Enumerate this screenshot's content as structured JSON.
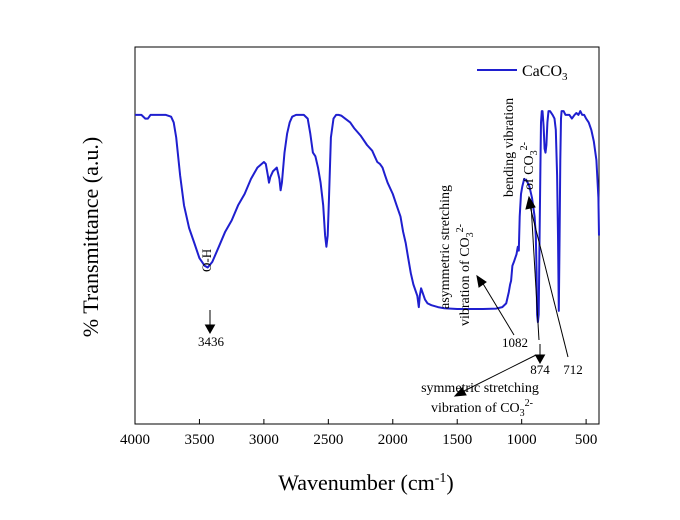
{
  "chart_data": {
    "type": "line",
    "title": "",
    "xlabel_main": "Wavenumber (cm",
    "xlabel_sup": "-1",
    "xlabel_end": ")",
    "ylabel": "% Transmittance (a.u.)",
    "xlim": [
      4000,
      400
    ],
    "ylim": [
      0,
      100
    ],
    "x_reversed": true,
    "x_ticks": [
      4000,
      3500,
      3000,
      2500,
      2000,
      1500,
      1000,
      500
    ],
    "y_ticks_shown": false,
    "legend": {
      "position": "top-right",
      "label_base": "CaCO",
      "label_sub": "3"
    },
    "line_color": "#1f1fcf",
    "series": [
      {
        "name": "CaCO3",
        "points": [
          [
            4000,
            82
          ],
          [
            3950,
            82
          ],
          [
            3920,
            81
          ],
          [
            3900,
            81
          ],
          [
            3880,
            82
          ],
          [
            3850,
            82
          ],
          [
            3800,
            82
          ],
          [
            3760,
            82
          ],
          [
            3720,
            81.5
          ],
          [
            3700,
            80
          ],
          [
            3680,
            76
          ],
          [
            3650,
            66
          ],
          [
            3620,
            58
          ],
          [
            3580,
            52
          ],
          [
            3540,
            48
          ],
          [
            3500,
            44
          ],
          [
            3460,
            42
          ],
          [
            3436,
            41.5
          ],
          [
            3400,
            43
          ],
          [
            3350,
            47
          ],
          [
            3300,
            51
          ],
          [
            3250,
            54
          ],
          [
            3200,
            58
          ],
          [
            3150,
            61
          ],
          [
            3100,
            65
          ],
          [
            3050,
            68
          ],
          [
            3000,
            69.5
          ],
          [
            2985,
            69
          ],
          [
            2970,
            66
          ],
          [
            2960,
            64
          ],
          [
            2950,
            65.5
          ],
          [
            2930,
            67
          ],
          [
            2900,
            68
          ],
          [
            2880,
            65
          ],
          [
            2870,
            62
          ],
          [
            2860,
            64
          ],
          [
            2840,
            72
          ],
          [
            2820,
            77
          ],
          [
            2800,
            80
          ],
          [
            2780,
            81.5
          ],
          [
            2750,
            82
          ],
          [
            2720,
            82
          ],
          [
            2690,
            82
          ],
          [
            2660,
            81
          ],
          [
            2640,
            77
          ],
          [
            2620,
            72
          ],
          [
            2600,
            71
          ],
          [
            2580,
            68
          ],
          [
            2560,
            64
          ],
          [
            2540,
            58
          ],
          [
            2525,
            50
          ],
          [
            2515,
            47
          ],
          [
            2505,
            50
          ],
          [
            2495,
            60
          ],
          [
            2480,
            76
          ],
          [
            2460,
            81
          ],
          [
            2440,
            82
          ],
          [
            2420,
            82
          ],
          [
            2400,
            81.8
          ],
          [
            2370,
            81
          ],
          [
            2330,
            80
          ],
          [
            2300,
            78.5
          ],
          [
            2250,
            76.5
          ],
          [
            2200,
            74
          ],
          [
            2160,
            72.5
          ],
          [
            2140,
            71
          ],
          [
            2120,
            69.5
          ],
          [
            2100,
            69
          ],
          [
            2080,
            68
          ],
          [
            2060,
            66
          ],
          [
            2040,
            64
          ],
          [
            2000,
            61
          ],
          [
            1970,
            58
          ],
          [
            1940,
            55
          ],
          [
            1920,
            51
          ],
          [
            1900,
            48
          ],
          [
            1880,
            44
          ],
          [
            1860,
            40
          ],
          [
            1840,
            37
          ],
          [
            1810,
            34
          ],
          [
            1798,
            31
          ],
          [
            1790,
            34
          ],
          [
            1780,
            36
          ],
          [
            1770,
            35
          ],
          [
            1750,
            33
          ],
          [
            1730,
            32
          ],
          [
            1700,
            31.5
          ],
          [
            1650,
            31
          ],
          [
            1600,
            30.7
          ],
          [
            1500,
            30.5
          ],
          [
            1400,
            30.5
          ],
          [
            1300,
            30.5
          ],
          [
            1200,
            30.6
          ],
          [
            1150,
            31
          ],
          [
            1120,
            32
          ],
          [
            1100,
            35
          ],
          [
            1090,
            37
          ],
          [
            1082,
            38
          ],
          [
            1072,
            42
          ],
          [
            1060,
            43
          ],
          [
            1050,
            44
          ],
          [
            1040,
            45
          ],
          [
            1030,
            47
          ],
          [
            1022,
            46
          ],
          [
            1015,
            55
          ],
          [
            1005,
            61
          ],
          [
            995,
            63
          ],
          [
            980,
            65
          ],
          [
            960,
            64.5
          ],
          [
            940,
            63
          ],
          [
            920,
            60
          ],
          [
            900,
            55
          ],
          [
            890,
            50
          ],
          [
            884,
            40
          ],
          [
            880,
            29
          ],
          [
            874,
            27
          ],
          [
            868,
            29
          ],
          [
            862,
            48
          ],
          [
            855,
            68
          ],
          [
            850,
            80
          ],
          [
            844,
            83
          ],
          [
            838,
            83
          ],
          [
            830,
            79
          ],
          [
            822,
            73
          ],
          [
            815,
            72
          ],
          [
            808,
            74
          ],
          [
            800,
            80
          ],
          [
            792,
            83
          ],
          [
            780,
            83
          ],
          [
            760,
            82
          ],
          [
            745,
            81
          ],
          [
            735,
            78
          ],
          [
            725,
            66
          ],
          [
            718,
            50
          ],
          [
            712,
            30
          ],
          [
            706,
            50
          ],
          [
            700,
            70
          ],
          [
            695,
            81
          ],
          [
            690,
            83
          ],
          [
            675,
            83
          ],
          [
            660,
            82
          ],
          [
            645,
            82
          ],
          [
            630,
            82
          ],
          [
            610,
            81
          ],
          [
            590,
            82
          ],
          [
            575,
            82.5
          ],
          [
            560,
            82
          ],
          [
            545,
            83
          ],
          [
            530,
            82
          ],
          [
            515,
            82
          ],
          [
            500,
            81
          ],
          [
            480,
            80
          ],
          [
            460,
            78
          ],
          [
            440,
            75
          ],
          [
            420,
            70
          ],
          [
            405,
            60
          ],
          [
            400,
            50
          ]
        ]
      }
    ],
    "annotations": [
      {
        "id": "oh_label",
        "text": "O-H"
      },
      {
        "id": "oh_value",
        "text": "3436",
        "wavenumber": 3436
      },
      {
        "id": "asym_line1",
        "text": "asymmetric stretching"
      },
      {
        "id": "asym_line2_base",
        "text": "vibration of CO",
        "sub": "3",
        "sup": "2-"
      },
      {
        "id": "val_1082",
        "text": "1082",
        "wavenumber": 1082
      },
      {
        "id": "val_874",
        "text": "874",
        "wavenumber": 874
      },
      {
        "id": "val_712",
        "text": "712",
        "wavenumber": 712
      },
      {
        "id": "sym_line1",
        "text": "symmetric stretching"
      },
      {
        "id": "sym_line2_base",
        "text": "vibration of CO",
        "sub": "3",
        "sup": "2-"
      },
      {
        "id": "bend_line1",
        "text": "bending vibration"
      },
      {
        "id": "bend_line2_base",
        "text": "of CO",
        "sub": "3",
        "sup": "2-"
      }
    ]
  }
}
